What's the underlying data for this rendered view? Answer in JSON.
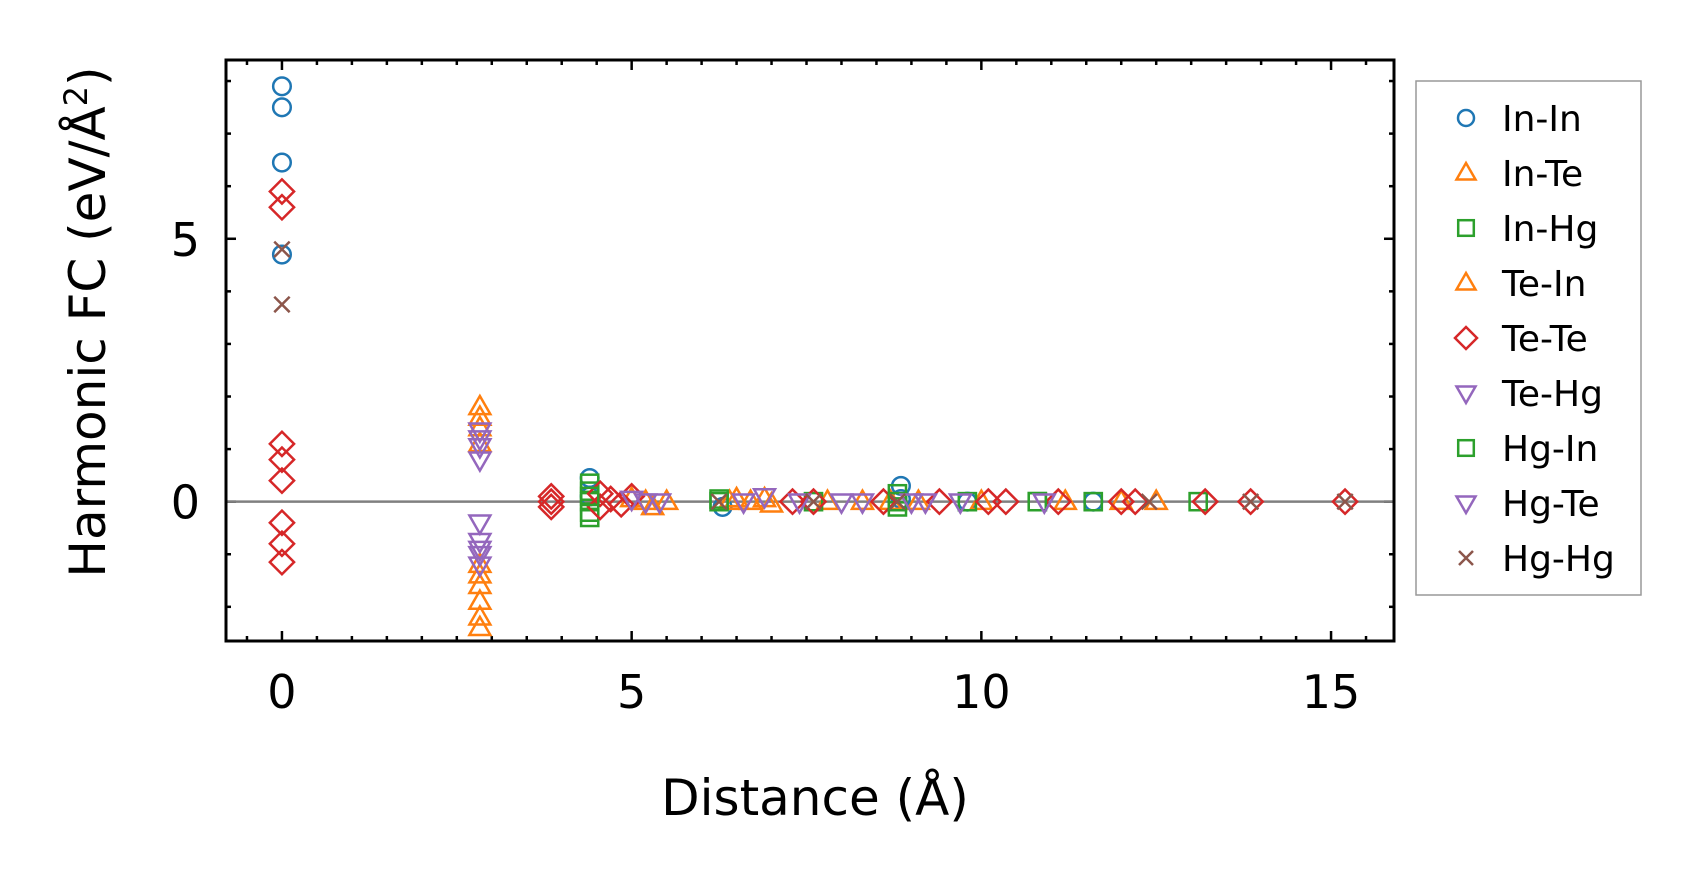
{
  "chart_data": {
    "type": "scatter",
    "xlabel": "Distance (Å)",
    "ylabel_main": "Harmonic FC (eV/Å",
    "ylabel_sup": "2",
    "ylabel_close": ")",
    "xlim": [
      -0.8,
      15.9
    ],
    "ylim": [
      -2.65,
      8.4
    ],
    "xticks": [
      0,
      5,
      10,
      15
    ],
    "yticks": [
      0,
      5
    ],
    "xtick_labels": [
      "0",
      "5",
      "10",
      "15"
    ],
    "ytick_labels": [
      "0",
      "5"
    ],
    "grid": false,
    "legend_position": "outside-right",
    "zero_line": 0,
    "series": [
      {
        "name": "In-In",
        "marker": "circle",
        "color": "#1f77b4",
        "points": [
          [
            0,
            7.9
          ],
          [
            0,
            7.5
          ],
          [
            0,
            6.45
          ],
          [
            0,
            4.7
          ],
          [
            4.4,
            0.45
          ],
          [
            4.4,
            0.1
          ],
          [
            8.85,
            0.3
          ],
          [
            8.85,
            0.05
          ],
          [
            6.3,
            -0.1
          ],
          [
            9.8,
            0
          ],
          [
            11.6,
            0
          ]
        ]
      },
      {
        "name": "In-Te",
        "marker": "triangle-up",
        "color": "#ff7f0e",
        "points": [
          [
            2.83,
            1.6
          ],
          [
            2.83,
            1.4
          ],
          [
            2.83,
            1.1
          ],
          [
            2.83,
            -1.2
          ],
          [
            2.83,
            -1.6
          ],
          [
            2.83,
            -1.9
          ],
          [
            2.83,
            -2.2
          ],
          [
            5.0,
            0.05
          ],
          [
            5.2,
            0
          ],
          [
            5.5,
            0
          ],
          [
            6.4,
            0
          ],
          [
            6.7,
            0
          ],
          [
            6.9,
            0.05
          ],
          [
            7.0,
            -0.05
          ],
          [
            7.8,
            0
          ],
          [
            8.3,
            0
          ],
          [
            8.7,
            0
          ],
          [
            10.0,
            0
          ],
          [
            11.2,
            0
          ],
          [
            12.5,
            0
          ]
        ]
      },
      {
        "name": "In-Hg",
        "marker": "square",
        "color": "#2ca02c",
        "points": [
          [
            4.4,
            0.35
          ],
          [
            4.4,
            0.2
          ],
          [
            4.4,
            0
          ],
          [
            4.4,
            -0.2
          ],
          [
            4.4,
            -0.3
          ],
          [
            6.25,
            0
          ],
          [
            7.6,
            0
          ],
          [
            8.8,
            0.15
          ],
          [
            8.8,
            -0.1
          ],
          [
            9.8,
            0
          ],
          [
            10.8,
            0
          ],
          [
            11.6,
            0
          ],
          [
            13.1,
            0
          ]
        ]
      },
      {
        "name": "Te-In",
        "marker": "triangle-up",
        "color": "#ff7f0e",
        "points": [
          [
            2.83,
            1.8
          ],
          [
            2.83,
            -1.4
          ],
          [
            2.83,
            -2.4
          ],
          [
            5.3,
            -0.1
          ],
          [
            6.5,
            0.05
          ],
          [
            9.1,
            0
          ],
          [
            12.0,
            0
          ]
        ]
      },
      {
        "name": "Te-Te",
        "marker": "diamond",
        "color": "#d62728",
        "points": [
          [
            0,
            5.9
          ],
          [
            0,
            5.6
          ],
          [
            0,
            1.1
          ],
          [
            0,
            0.8
          ],
          [
            0,
            0.4
          ],
          [
            0,
            -0.4
          ],
          [
            0,
            -0.8
          ],
          [
            0,
            -1.15
          ],
          [
            3.85,
            0.1
          ],
          [
            3.85,
            0
          ],
          [
            3.85,
            -0.1
          ],
          [
            4.55,
            0.15
          ],
          [
            4.55,
            -0.1
          ],
          [
            4.7,
            0.05
          ],
          [
            4.85,
            -0.05
          ],
          [
            5.0,
            0.1
          ],
          [
            7.3,
            0
          ],
          [
            7.6,
            0
          ],
          [
            8.6,
            0
          ],
          [
            9.4,
            0
          ],
          [
            10.1,
            0
          ],
          [
            10.35,
            0
          ],
          [
            11.1,
            0
          ],
          [
            12.0,
            0
          ],
          [
            12.2,
            0
          ],
          [
            13.2,
            0
          ],
          [
            13.85,
            0
          ],
          [
            15.2,
            0
          ]
        ]
      },
      {
        "name": "Te-Hg",
        "marker": "triangle-down",
        "color": "#9467bd",
        "points": [
          [
            2.83,
            1.35
          ],
          [
            2.83,
            1.05
          ],
          [
            2.83,
            0.8
          ],
          [
            2.83,
            -0.4
          ],
          [
            2.83,
            -0.75
          ],
          [
            2.83,
            -1.0
          ],
          [
            2.83,
            -1.2
          ],
          [
            5.0,
            0.05
          ],
          [
            5.4,
            0
          ],
          [
            6.6,
            0
          ],
          [
            6.9,
            0.1
          ],
          [
            8.0,
            0
          ],
          [
            8.3,
            0
          ],
          [
            9.2,
            0
          ],
          [
            9.7,
            0
          ]
        ]
      },
      {
        "name": "Hg-In",
        "marker": "square",
        "color": "#2ca02c",
        "points": [
          [
            4.4,
            0.1
          ],
          [
            6.25,
            0.05
          ],
          [
            8.8,
            0
          ],
          [
            10.8,
            0
          ]
        ]
      },
      {
        "name": "Hg-Te",
        "marker": "triangle-down",
        "color": "#9467bd",
        "points": [
          [
            2.83,
            1.2
          ],
          [
            2.83,
            -0.9
          ],
          [
            5.2,
            0
          ],
          [
            7.4,
            0
          ],
          [
            9.0,
            0
          ],
          [
            10.9,
            0
          ]
        ]
      },
      {
        "name": "Hg-Hg",
        "marker": "x",
        "color": "#8c564b",
        "points": [
          [
            0,
            4.8
          ],
          [
            0,
            3.75
          ],
          [
            6.25,
            0
          ],
          [
            7.6,
            0
          ],
          [
            8.8,
            0
          ],
          [
            12.4,
            0
          ],
          [
            13.85,
            0
          ],
          [
            15.2,
            0
          ]
        ]
      }
    ]
  }
}
